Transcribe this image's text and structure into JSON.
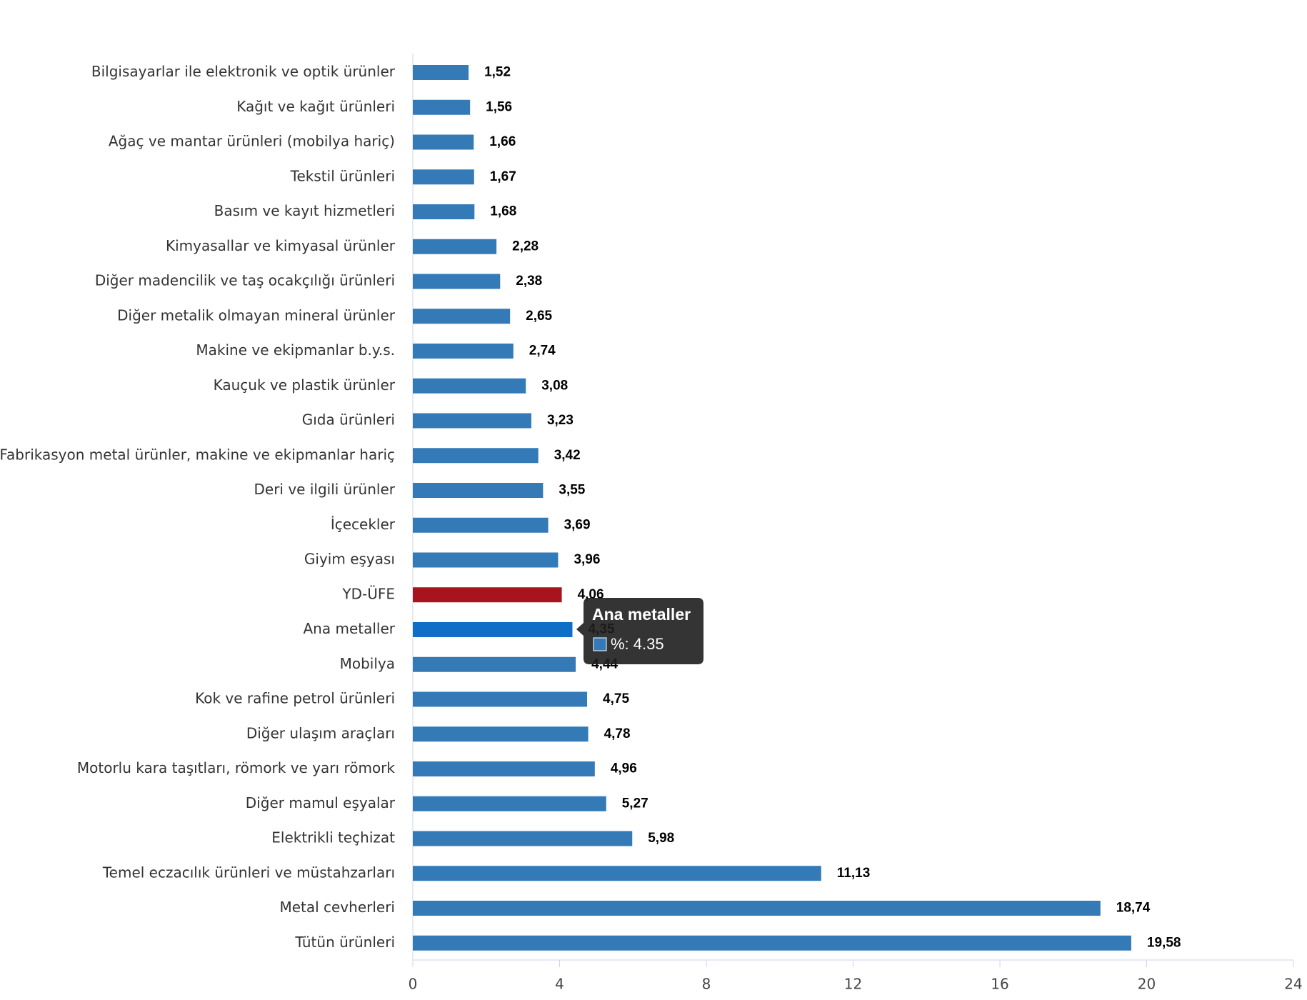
{
  "chart_data": {
    "type": "bar",
    "orientation": "horizontal",
    "categories": [
      "Bilgisayarlar ile elektronik ve optik ürünler",
      "Kağıt ve kağıt ürünleri",
      "Ağaç ve mantar ürünleri (mobilya hariç)",
      "Tekstil ürünleri",
      "Basım ve kayıt hizmetleri",
      "Kimyasallar ve kimyasal ürünler",
      "Diğer madencilik ve taş ocakçılığı ürünleri",
      "Diğer metalik olmayan mineral ürünler",
      "Makine ve ekipmanlar b.y.s.",
      "Kauçuk ve plastik ürünler",
      "Gıda ürünleri",
      "Fabrikasyon metal ürünler, makine ve ekipmanlar hariç",
      "Deri ve ilgili ürünler",
      "İçecekler",
      "Giyim eşyası",
      "YD-ÜFE",
      "Ana metaller",
      "Mobilya",
      "Kok ve rafine petrol ürünleri",
      "Diğer ulaşım araçları",
      "Motorlu kara taşıtları, römork ve yarı römork",
      "Diğer mamul eşyalar",
      "Elektrikli teçhizat",
      "Temel eczacılık ürünleri ve müstahzarları",
      "Metal cevherleri",
      "Tütün ürünleri"
    ],
    "values": [
      1.52,
      1.56,
      1.66,
      1.67,
      1.68,
      2.28,
      2.38,
      2.65,
      2.74,
      3.08,
      3.23,
      3.42,
      3.55,
      3.69,
      3.96,
      4.06,
      4.35,
      4.44,
      4.75,
      4.78,
      4.96,
      5.27,
      5.98,
      11.13,
      18.74,
      19.58
    ],
    "value_labels": [
      "1,52",
      "1,56",
      "1,66",
      "1,67",
      "1,68",
      "2,28",
      "2,38",
      "2,65",
      "2,74",
      "3,08",
      "3,23",
      "3,42",
      "3,55",
      "3,69",
      "3,96",
      "4,06",
      "4,35",
      "4,44",
      "4,75",
      "4,78",
      "4,96",
      "5,27",
      "5,98",
      "11,13",
      "18,74",
      "19,58"
    ],
    "colors": [
      "#337ab7",
      "#337ab7",
      "#337ab7",
      "#337ab7",
      "#337ab7",
      "#337ab7",
      "#337ab7",
      "#337ab7",
      "#337ab7",
      "#337ab7",
      "#337ab7",
      "#337ab7",
      "#337ab7",
      "#337ab7",
      "#337ab7",
      "#a8141e",
      "#0f6fc6",
      "#337ab7",
      "#337ab7",
      "#337ab7",
      "#337ab7",
      "#337ab7",
      "#337ab7",
      "#337ab7",
      "#337ab7",
      "#337ab7"
    ],
    "xlim": [
      0,
      24
    ],
    "xticks": [
      0,
      4,
      8,
      12,
      16,
      20,
      24
    ],
    "tooltip": {
      "title": "Ana metaller",
      "text": "%: 4.35",
      "color": "#337ab7"
    }
  }
}
